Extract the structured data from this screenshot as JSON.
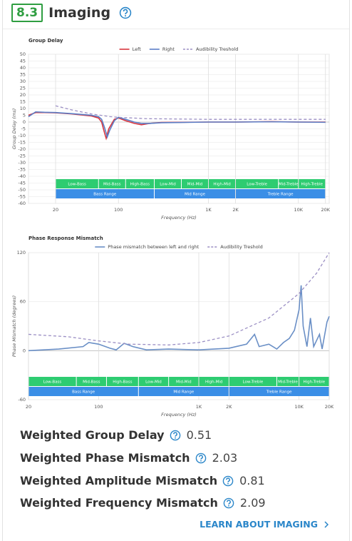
{
  "header": {
    "number": "8.3",
    "title": "Imaging"
  },
  "chart_data": [
    {
      "type": "line",
      "title": "Group Delay",
      "xlabel": "Frequency (Hz)",
      "ylabel": "Group Delay (ms)",
      "xlog": true,
      "grid": true,
      "xlim": [
        10,
        22000
      ],
      "ylim": [
        -60,
        50
      ],
      "xticks": [
        20,
        100,
        {
          "value": 1000,
          "label": "1K"
        },
        {
          "value": 2000,
          "label": "2K"
        },
        {
          "value": 10000,
          "label": "10K"
        },
        {
          "value": 20000,
          "label": "20K"
        }
      ],
      "yticks": [
        50,
        45,
        40,
        35,
        30,
        25,
        20,
        15,
        10,
        5,
        0,
        -5,
        -10,
        -15,
        -20,
        -25,
        -30,
        -35,
        -40,
        -45,
        -50,
        -55,
        -60
      ],
      "series": [
        {
          "name": "Left",
          "color": "#d9363e",
          "dashed": false,
          "x": [
            10,
            12,
            15,
            20,
            30,
            50,
            60,
            65,
            70,
            73,
            78,
            90,
            100,
            120,
            150,
            180,
            220,
            300,
            1000,
            2000,
            5000,
            10000,
            20000
          ],
          "values": [
            5,
            7,
            7,
            6.8,
            6,
            4.5,
            3,
            0,
            -8,
            -12,
            -5,
            2,
            3,
            1,
            -1,
            -2,
            -1,
            -0.3,
            0,
            0,
            0.3,
            0,
            0
          ]
        },
        {
          "name": "Right",
          "color": "#5b7fc7",
          "dashed": false,
          "x": [
            10,
            12,
            15,
            20,
            30,
            50,
            60,
            65,
            70,
            75,
            80,
            90,
            100,
            120,
            150,
            180,
            220,
            300,
            1000,
            2000,
            5000,
            10000,
            20000
          ],
          "values": [
            4,
            7.5,
            7.2,
            7,
            6.2,
            5,
            4,
            2,
            -4,
            -11,
            -6,
            1,
            3.5,
            2,
            0,
            -1,
            -1,
            -0.5,
            0,
            0,
            0.2,
            0,
            -0.2
          ]
        },
        {
          "name": "Audibility Treshold",
          "color": "#9b8fc4",
          "dashed": true,
          "x": [
            20,
            30,
            50,
            80,
            100,
            200,
            1000,
            20000
          ],
          "values": [
            12,
            9,
            6,
            4,
            3.5,
            2.5,
            2,
            2
          ]
        }
      ],
      "bands": [
        {
          "label": "Low-Bass",
          "range": [
            20,
            60
          ]
        },
        {
          "label": "Mid-Bass",
          "range": [
            60,
            120
          ]
        },
        {
          "label": "High-Bass",
          "range": [
            120,
            250
          ]
        },
        {
          "label": "Low-Mid",
          "range": [
            250,
            500
          ]
        },
        {
          "label": "Mid-Mid",
          "range": [
            500,
            1000
          ]
        },
        {
          "label": "High-Mid",
          "range": [
            1000,
            2000
          ]
        },
        {
          "label": "Low-Treble",
          "range": [
            2000,
            6000
          ]
        },
        {
          "label": "Mid-Treble",
          "range": [
            6000,
            10000
          ]
        },
        {
          "label": "High-Treble",
          "range": [
            10000,
            20000
          ]
        }
      ],
      "ranges": [
        {
          "label": "Bass Range",
          "range": [
            20,
            250
          ]
        },
        {
          "label": "Mid Range",
          "range": [
            250,
            2000
          ]
        },
        {
          "label": "Treble Range",
          "range": [
            2000,
            20000
          ]
        }
      ]
    },
    {
      "type": "line",
      "title": "Phase Response Mismatch",
      "xlabel": "Frequency (Hz)",
      "ylabel": "Phase Mismatch (degrees)",
      "xlog": true,
      "grid": true,
      "xlim": [
        20,
        20000
      ],
      "ylim": [
        -60,
        120
      ],
      "xticks": [
        20,
        100,
        {
          "value": 1000,
          "label": "1K"
        },
        {
          "value": 2000,
          "label": "2K"
        },
        {
          "value": 10000,
          "label": "10K"
        },
        {
          "value": 20000,
          "label": "20K"
        }
      ],
      "yticks": [
        120,
        60,
        0,
        -60
      ],
      "series": [
        {
          "name": "Phase mismatch between left and right",
          "color": "#6a8fc6",
          "dashed": false,
          "x": [
            20,
            40,
            70,
            80,
            100,
            130,
            150,
            180,
            220,
            300,
            500,
            1000,
            2000,
            3000,
            3600,
            4000,
            5000,
            6000,
            7000,
            8000,
            9000,
            10000,
            10500,
            11000,
            12000,
            13000,
            14000,
            16000,
            17000,
            19000,
            20000
          ],
          "values": [
            0,
            2,
            5,
            10,
            8,
            3,
            1,
            9,
            5,
            1,
            2,
            1,
            3,
            8,
            20,
            5,
            8,
            2,
            10,
            15,
            25,
            50,
            80,
            30,
            5,
            40,
            5,
            20,
            2,
            35,
            42
          ]
        },
        {
          "name": "Audibility Treshold",
          "color": "#9b8fc4",
          "dashed": true,
          "x": [
            20,
            50,
            100,
            200,
            500,
            1000,
            2000,
            5000,
            10000,
            15000,
            20000
          ],
          "values": [
            20,
            17,
            12,
            8,
            7,
            10,
            18,
            40,
            70,
            95,
            120
          ]
        }
      ],
      "bands": [
        {
          "label": "Low-Bass",
          "range": [
            20,
            60
          ]
        },
        {
          "label": "Mid-Bass",
          "range": [
            60,
            120
          ]
        },
        {
          "label": "High-Bass",
          "range": [
            120,
            250
          ]
        },
        {
          "label": "Low-Mid",
          "range": [
            250,
            500
          ]
        },
        {
          "label": "Mid-Mid",
          "range": [
            500,
            1000
          ]
        },
        {
          "label": "High-Mid",
          "range": [
            1000,
            2000
          ]
        },
        {
          "label": "Low-Treble",
          "range": [
            2000,
            6000
          ]
        },
        {
          "label": "Mid-Treble",
          "range": [
            6000,
            10000
          ]
        },
        {
          "label": "High-Treble",
          "range": [
            10000,
            20000
          ]
        }
      ],
      "ranges": [
        {
          "label": "Bass Range",
          "range": [
            20,
            250
          ]
        },
        {
          "label": "Mid Range",
          "range": [
            250,
            2000
          ]
        },
        {
          "label": "Treble Range",
          "range": [
            2000,
            20000
          ]
        }
      ]
    }
  ],
  "metrics": [
    {
      "label": "Weighted Group Delay",
      "value": 0.51
    },
    {
      "label": "Weighted Phase Mismatch",
      "value": 2.03
    },
    {
      "label": "Weighted Amplitude Mismatch",
      "value": 0.81
    },
    {
      "label": "Weighted Frequency Mismatch",
      "value": 2.09
    }
  ],
  "link": "LEARN ABOUT IMAGING"
}
